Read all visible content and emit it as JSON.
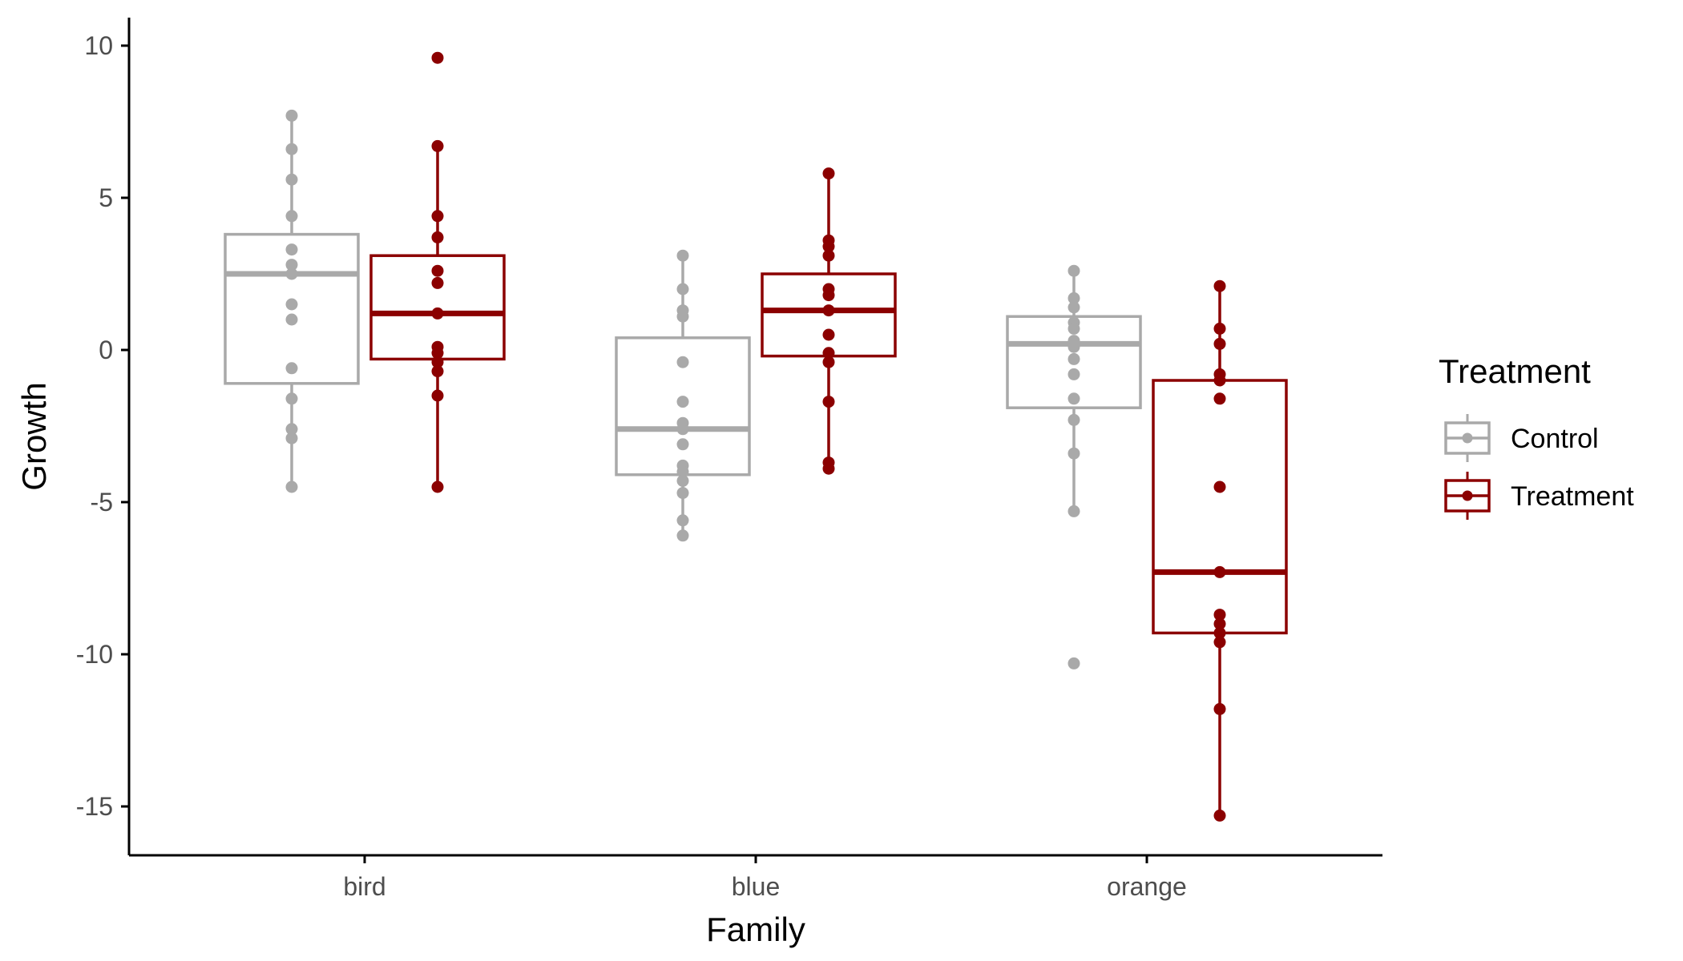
{
  "chart_data": {
    "type": "boxplot",
    "xlabel": "Family",
    "ylabel": "Growth",
    "categories": [
      "bird",
      "blue",
      "orange"
    ],
    "ylim": [
      -16.5,
      10.8
    ],
    "yticks": [
      {
        "value": 10,
        "label": "10"
      },
      {
        "value": 5,
        "label": "5"
      },
      {
        "value": 0,
        "label": "0"
      },
      {
        "value": -5,
        "label": "-5"
      },
      {
        "value": -10,
        "label": "-10"
      },
      {
        "value": -15,
        "label": "-15"
      }
    ],
    "grid": false,
    "legend": {
      "title": "Treatment",
      "position": "right",
      "entries": [
        "Control",
        "Treatment"
      ]
    },
    "series": [
      {
        "name": "Control",
        "color": "#A9A9A9",
        "boxes": [
          {
            "category": "bird",
            "min": -4.5,
            "q1": -1.1,
            "median": 2.5,
            "q3": 3.8,
            "max": 7.7,
            "points": [
              7.7,
              6.6,
              5.6,
              4.4,
              3.3,
              2.8,
              2.5,
              1.5,
              1.0,
              -0.6,
              -1.6,
              -2.6,
              -2.9,
              -4.5
            ]
          },
          {
            "category": "blue",
            "min": -6.1,
            "q1": -4.1,
            "median": -2.6,
            "q3": 0.4,
            "max": 3.1,
            "points": [
              3.1,
              2.0,
              1.3,
              1.1,
              -0.4,
              -1.7,
              -2.4,
              -2.6,
              -3.1,
              -3.8,
              -4.0,
              -4.3,
              -4.7,
              -5.6,
              -6.1
            ]
          },
          {
            "category": "orange",
            "min": -5.3,
            "q1": -1.9,
            "median": 0.2,
            "q3": 1.1,
            "max": 2.6,
            "points": [
              2.6,
              1.7,
              1.4,
              0.9,
              0.7,
              0.3,
              0.1,
              -0.3,
              -0.8,
              -1.6,
              -2.3,
              -3.4,
              -5.3
            ],
            "outliers": [
              -10.3
            ]
          }
        ]
      },
      {
        "name": "Treatment",
        "color": "#8B0000",
        "boxes": [
          {
            "category": "bird",
            "min": -4.5,
            "q1": -0.3,
            "median": 1.2,
            "q3": 3.1,
            "max": 6.7,
            "points": [
              6.7,
              4.4,
              3.7,
              2.6,
              2.2,
              1.2,
              0.1,
              -0.1,
              -0.4,
              -0.7,
              -1.5,
              -4.5
            ],
            "outliers": [
              9.6
            ]
          },
          {
            "category": "blue",
            "min": -3.9,
            "q1": -0.2,
            "median": 1.3,
            "q3": 2.5,
            "max": 5.8,
            "points": [
              5.8,
              3.6,
              3.4,
              3.1,
              2.0,
              1.8,
              1.3,
              0.5,
              -0.1,
              -0.4,
              -1.7,
              -3.7,
              -3.9
            ]
          },
          {
            "category": "orange",
            "min": -15.3,
            "q1": -9.3,
            "median": -7.3,
            "q3": -1.0,
            "max": 2.1,
            "points": [
              2.1,
              0.7,
              0.2,
              -0.8,
              -1.0,
              -1.6,
              -4.5,
              -7.3,
              -8.7,
              -9.0,
              -9.3,
              -9.6,
              -11.8,
              -15.3
            ]
          }
        ]
      }
    ]
  }
}
